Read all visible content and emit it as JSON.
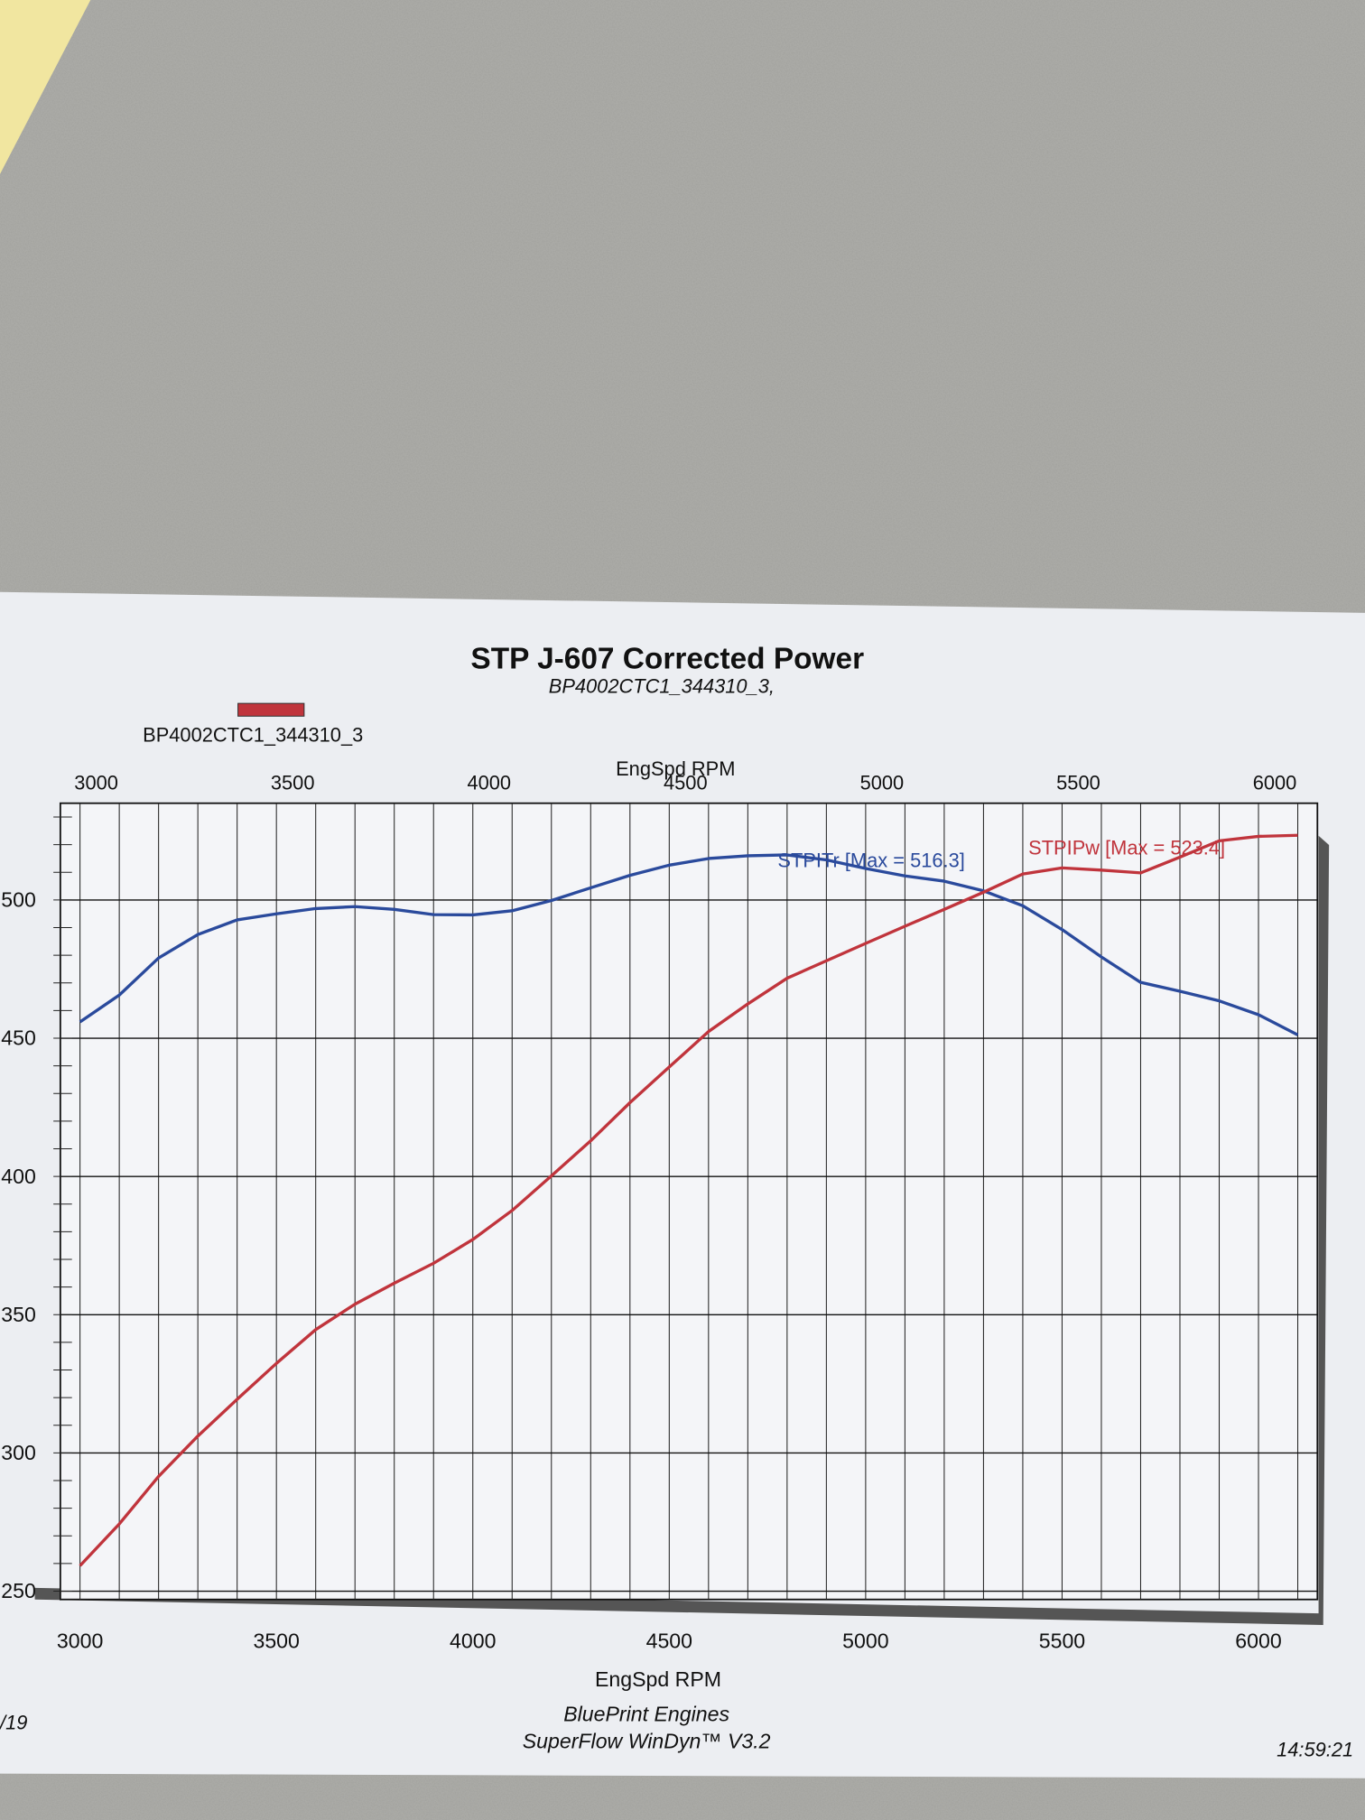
{
  "chart_data": {
    "type": "line",
    "title": "STP J-607 Corrected Power",
    "subtitle": "BP4002CTC1_344310_3,",
    "legend": {
      "label": "BP4002CTC1_344310_3",
      "color": "#c0343c"
    },
    "x_label_top": "EngSpd RPM",
    "x_label": "EngSpd RPM",
    "x": [
      3000,
      3100,
      3200,
      3300,
      3400,
      3500,
      3600,
      3700,
      3800,
      3900,
      4000,
      4100,
      4200,
      4300,
      4400,
      4500,
      4600,
      4700,
      4800,
      4900,
      5000,
      5100,
      5200,
      5300,
      5400,
      5500,
      5600,
      5700,
      5800,
      5900,
      6000,
      6100
    ],
    "series": [
      {
        "name": "STPITr [Max = 516.3]",
        "color": "#2a4a9c",
        "values": [
          455.9,
          465.6,
          479,
          487.5,
          492.8,
          495,
          496.9,
          497.6,
          496.6,
          494.7,
          494.6,
          496.1,
          499.8,
          504.4,
          508.9,
          512.6,
          515,
          516,
          516.3,
          514.5,
          511.4,
          508.7,
          506.8,
          503.3,
          497.9,
          489.3,
          479.4,
          470.2,
          467,
          463.5,
          458.5,
          451.2
        ]
      },
      {
        "name": "STPIPw [Max = 523.4]",
        "color": "#c0343c",
        "values": [
          259.2,
          274.3,
          291.5,
          306.1,
          319.4,
          332.4,
          344.6,
          353.8,
          361.4,
          368.6,
          377.2,
          387.7,
          400.2,
          412.9,
          426.7,
          439.6,
          452.4,
          462.4,
          471.7,
          478,
          484.3,
          490.5,
          496.6,
          502.8,
          509.4,
          511.6,
          510.8,
          509.8,
          515.5,
          521.4,
          523,
          523.4
        ]
      }
    ],
    "xlim": [
      2950,
      6150
    ],
    "xticks": [
      3000,
      3500,
      4000,
      4500,
      5000,
      5500,
      6000
    ],
    "xminorticks": [
      3000,
      3100,
      3200,
      3300,
      3400,
      3500,
      3600,
      3700,
      3800,
      3900,
      4000,
      4100,
      4200,
      4300,
      4400,
      4500,
      4600,
      4700,
      4800,
      4900,
      5000,
      5100,
      5200,
      5300,
      5400,
      5500,
      5600,
      5700,
      5800,
      5900,
      6000,
      6100
    ],
    "ylim": [
      247,
      535
    ],
    "yticks": [
      250,
      300,
      350,
      400,
      450,
      500
    ],
    "yminorticks": [
      250,
      260,
      270,
      280,
      290,
      300,
      310,
      320,
      330,
      340,
      350,
      360,
      370,
      380,
      390,
      400,
      410,
      420,
      430,
      440,
      450,
      460,
      470,
      480,
      490,
      500,
      510,
      520,
      530
    ],
    "grid": true,
    "footer": [
      "BluePrint Engines",
      "SuperFlow WinDyn™ V3.2"
    ],
    "date": "/19",
    "time": "14:59:21"
  }
}
